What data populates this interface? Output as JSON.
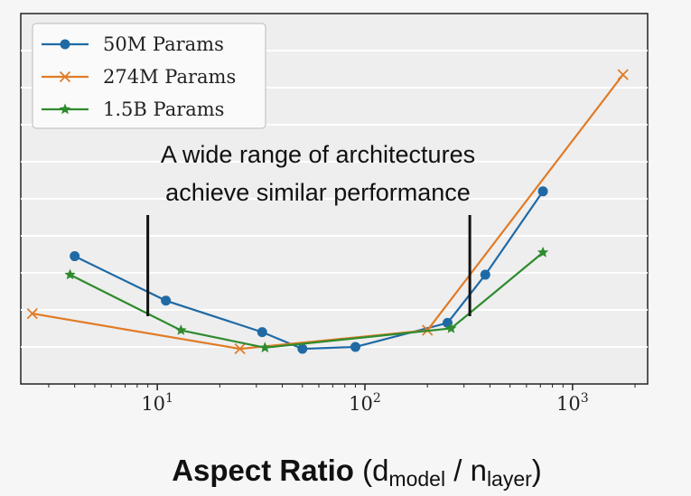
{
  "chart_data": {
    "type": "line",
    "xscale": "log",
    "xlim": [
      2.2,
      2300
    ],
    "ylim": [
      0,
      1
    ],
    "grid": "horizontal",
    "legend_position": "upper-left",
    "xticks": [
      {
        "base": "10",
        "exp": "1"
      },
      {
        "base": "10",
        "exp": "2"
      },
      {
        "base": "10",
        "exp": "3"
      }
    ],
    "xlabel": {
      "main": "Aspect Ratio",
      "open": " (d",
      "sub1": "model",
      "mid": " / n",
      "sub2": "layer",
      "close": ")"
    },
    "annotation": {
      "line1": "A wide range of architectures",
      "line2": "achieve similar performance",
      "bounds_x": [
        9,
        320
      ]
    },
    "series": [
      {
        "name": "50M Params",
        "color": "#1f6aa5",
        "marker": "circle",
        "x": [
          4,
          11,
          32,
          50,
          90,
          250,
          380,
          720
        ],
        "y": [
          0.345,
          0.225,
          0.14,
          0.095,
          0.1,
          0.165,
          0.295,
          0.52
        ]
      },
      {
        "name": "274M Params",
        "color": "#e07b26",
        "marker": "x",
        "x": [
          2.5,
          25,
          200,
          1750
        ],
        "y": [
          0.19,
          0.095,
          0.145,
          0.835
        ]
      },
      {
        "name": "1.5B Params",
        "color": "#2e8b2e",
        "marker": "star",
        "x": [
          3.8,
          13,
          33,
          260,
          720
        ],
        "y": [
          0.295,
          0.145,
          0.098,
          0.15,
          0.355
        ]
      }
    ]
  }
}
